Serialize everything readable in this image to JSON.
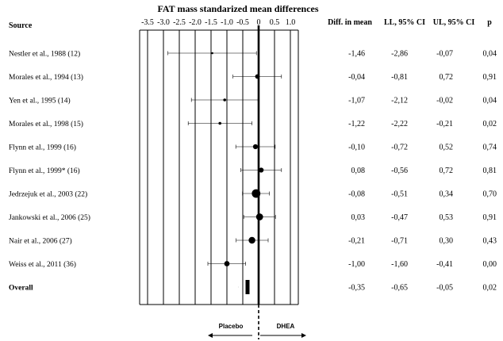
{
  "chart_data": {
    "type": "forest",
    "title": "FAT mass standarized mean differences",
    "x_ticks": [
      "-3.5",
      "-3.0",
      "-2.5",
      "-2.0",
      "-1.5",
      "-1.0",
      "-0.5",
      "0",
      "0.5",
      "1.0"
    ],
    "x_tick_values": [
      -3.5,
      -3.0,
      -2.5,
      -2.0,
      -1.5,
      -1.0,
      -0.5,
      0,
      0.5,
      1.0
    ],
    "xlim": [
      -3.75,
      1.25
    ],
    "headers": {
      "source": "Source",
      "diff": "Diff. in mean",
      "ll": "LL, 95% CI",
      "ul": "UL, 95% CI",
      "p": "p"
    },
    "studies": [
      {
        "source": "Nestler et al., 1988 (12)",
        "diff": "-1,46",
        "ll": "-2,86",
        "ul": "-0,07",
        "p": "0,04",
        "mean": -1.46,
        "lower": -2.86,
        "upper": -0.07,
        "weight": 0.5
      },
      {
        "source": "Morales et al., 1994 (13)",
        "diff": "-0,04",
        "ll": "-0,81",
        "ul": "0,72",
        "p": "0,91",
        "mean": -0.04,
        "lower": -0.81,
        "upper": 0.72,
        "weight": 2.5
      },
      {
        "source": "Yen et al., 1995 (14)",
        "diff": "-1,07",
        "ll": "-2,12",
        "ul": "-0,02",
        "p": "0,04",
        "mean": -1.07,
        "lower": -2.12,
        "upper": -0.02,
        "weight": 1.0
      },
      {
        "source": "Morales et al., 1998 (15)",
        "diff": "-1,22",
        "ll": "-2,22",
        "ul": "-0,21",
        "p": "0,02",
        "mean": -1.22,
        "lower": -2.22,
        "upper": -0.21,
        "weight": 1.0
      },
      {
        "source": "Flynn et al., 1999 (16)",
        "diff": "-0,10",
        "ll": "-0,72",
        "ul": "0,52",
        "p": "0,74",
        "mean": -0.1,
        "lower": -0.72,
        "upper": 0.52,
        "weight": 3.0
      },
      {
        "source": "Flynn et al., 1999* (16)",
        "diff": "0,08",
        "ll": "-0,56",
        "ul": "0,72",
        "p": "0,81",
        "mean": 0.08,
        "lower": -0.56,
        "upper": 0.72,
        "weight": 3.0
      },
      {
        "source": "Jedrzejuk et al., 2003 (22)",
        "diff": "-0,08",
        "ll": "-0,51",
        "ul": "0,34",
        "p": "0,70",
        "mean": -0.08,
        "lower": -0.51,
        "upper": 0.34,
        "weight": 9.0
      },
      {
        "source": "Jankowski et al., 2006 (25)",
        "diff": "0,03",
        "ll": "-0,47",
        "ul": "0,53",
        "p": "0,91",
        "mean": 0.03,
        "lower": -0.47,
        "upper": 0.53,
        "weight": 6.0
      },
      {
        "source": "Nair et al., 2006 (27)",
        "diff": "-0,21",
        "ll": "-0,71",
        "ul": "0,30",
        "p": "0,43",
        "mean": -0.21,
        "lower": -0.71,
        "upper": 0.3,
        "weight": 5.5
      },
      {
        "source": "Weiss et al., 2011 (36)",
        "diff": "-1,00",
        "ll": "-1,60",
        "ul": "-0,41",
        "p": "0,00",
        "mean": -1.0,
        "lower": -1.6,
        "upper": -0.41,
        "weight": 3.5
      }
    ],
    "overall": {
      "source": "Overall",
      "diff": "-0,35",
      "ll": "-0,65",
      "ul": "-0,05",
      "p": "0,02",
      "mean": -0.35,
      "lower": -0.65,
      "upper": -0.05
    },
    "favors_left": "Placebo",
    "favors_right": "DHEA",
    "grid": true,
    "colors": {
      "ink": "#000000",
      "grid": "#000000",
      "background": "#ffffff"
    }
  }
}
